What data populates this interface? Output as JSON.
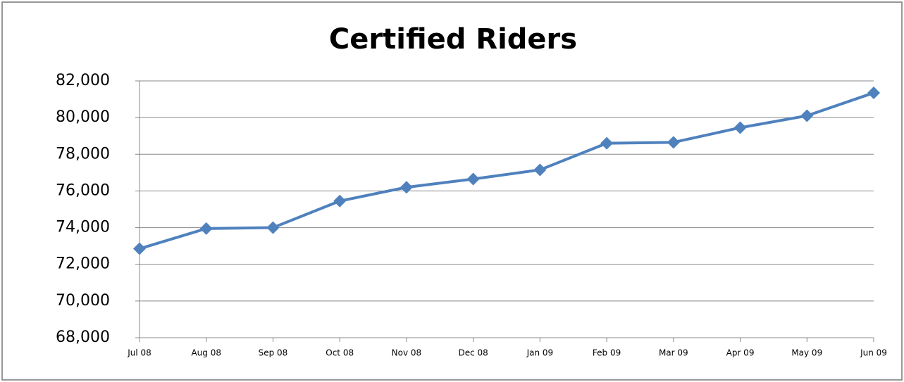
{
  "chart_data": {
    "type": "line",
    "title": "Certified Riders",
    "categories": [
      "Jul 08",
      "Aug 08",
      "Sep 08",
      "Oct 08",
      "Nov 08",
      "Dec 08",
      "Jan 09",
      "Feb 09",
      "Mar 09",
      "Apr 09",
      "May 09",
      "Jun 09"
    ],
    "series": [
      {
        "name": "Certified Riders",
        "color": "#4f81bd",
        "values": [
          72850,
          73950,
          74000,
          75450,
          76200,
          76650,
          77150,
          78600,
          78650,
          79450,
          80100,
          81350
        ]
      }
    ],
    "ylim": [
      68000,
      82000
    ],
    "yticks": [
      {
        "value": 68000,
        "label": "68,000"
      },
      {
        "value": 70000,
        "label": "70,000"
      },
      {
        "value": 72000,
        "label": "72,000"
      },
      {
        "value": 74000,
        "label": "74,000"
      },
      {
        "value": 76000,
        "label": "76,000"
      },
      {
        "value": 78000,
        "label": "78,000"
      },
      {
        "value": 80000,
        "label": "80,000"
      },
      {
        "value": 82000,
        "label": "82,000"
      }
    ],
    "grid": true,
    "legend": false
  }
}
